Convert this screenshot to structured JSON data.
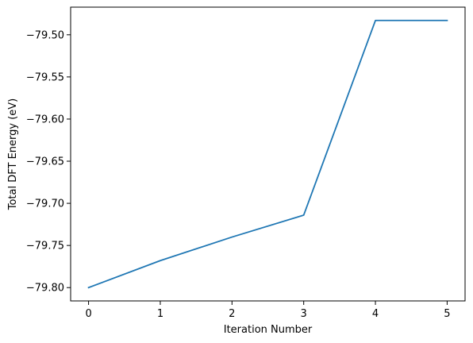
{
  "chart_data": {
    "type": "line",
    "title": "",
    "xlabel": "Iteration Number",
    "ylabel": "Total DFT Energy (eV)",
    "x": [
      0,
      1,
      2,
      3,
      4,
      5
    ],
    "series": [
      {
        "values": [
          -79.8,
          -79.768,
          -79.74,
          -79.714,
          -79.483,
          -79.483
        ]
      }
    ],
    "xlim": [
      -0.25,
      5.25
    ],
    "ylim": [
      -79.8158,
      -79.4672
    ],
    "xticks": [
      0,
      1,
      2,
      3,
      4,
      5
    ],
    "xtick_labels": [
      "0",
      "1",
      "2",
      "3",
      "4",
      "5"
    ],
    "yticks": [
      -79.8,
      -79.75,
      -79.7,
      -79.65,
      -79.6,
      -79.55,
      -79.5
    ],
    "ytick_labels": [
      "−79.80",
      "−79.75",
      "−79.70",
      "−79.65",
      "−79.60",
      "−79.55",
      "−79.50"
    ],
    "grid": false,
    "legend": "none",
    "colors": {
      "series": "#1f77b4",
      "axes": "#000000",
      "background": "#ffffff"
    }
  }
}
